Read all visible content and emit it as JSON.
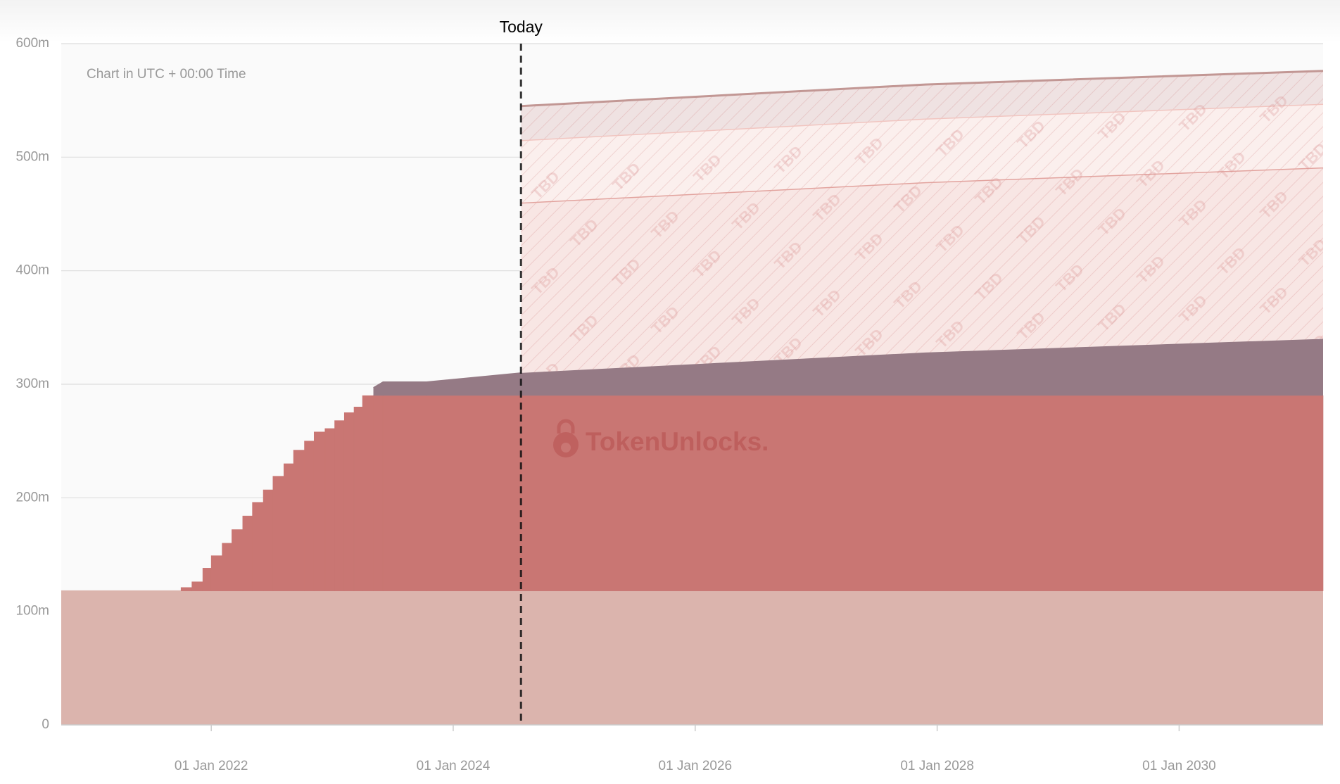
{
  "chart_data": {
    "type": "stacked_area",
    "annotation": "Chart in UTC + 00:00 Time",
    "today_label": "Today",
    "today": 2024.56,
    "watermark": "TokenUnlocks.",
    "area_label": "TBD",
    "x": [
      2020.76,
      2021.75,
      2021.84,
      2021.93,
      2022.0,
      2022.09,
      2022.17,
      2022.26,
      2022.34,
      2022.43,
      2022.51,
      2022.6,
      2022.68,
      2022.77,
      2022.85,
      2022.94,
      2023.02,
      2023.1,
      2023.18,
      2023.25,
      2023.34,
      2023.42,
      2023.78,
      2024.56,
      2027.9,
      2031.19
    ],
    "series": [
      {
        "color": "#dbb4ad",
        "values": [
          118,
          118,
          118,
          118,
          118,
          118,
          118,
          118,
          118,
          118,
          118,
          118,
          118,
          118,
          118,
          118,
          118,
          118,
          118,
          118,
          118,
          118,
          118,
          118,
          118,
          118
        ]
      },
      {
        "color": "#c97673",
        "step": true,
        "values": [
          0,
          3,
          8,
          20,
          31,
          42,
          54,
          66,
          78,
          89,
          101,
          112,
          124,
          132,
          140,
          143,
          150,
          157,
          162,
          172,
          172,
          172,
          172,
          172,
          172,
          172
        ]
      },
      {
        "color": "#957a85",
        "values": [
          null,
          null,
          null,
          null,
          null,
          null,
          null,
          null,
          null,
          null,
          null,
          null,
          null,
          null,
          null,
          null,
          null,
          null,
          null,
          null,
          7,
          12,
          12,
          20,
          38,
          50
        ]
      },
      {
        "color": "#f8e6e4",
        "line_color": "#e2a39e",
        "hatched": true,
        "values": [
          null,
          null,
          null,
          null,
          null,
          null,
          null,
          null,
          null,
          null,
          null,
          null,
          null,
          null,
          null,
          null,
          null,
          null,
          null,
          null,
          null,
          null,
          null,
          150,
          150,
          151
        ]
      },
      {
        "color": "#fbefed",
        "line_color": "#f1c5c0",
        "hatched": true,
        "values": [
          null,
          null,
          null,
          null,
          null,
          null,
          null,
          null,
          null,
          null,
          null,
          null,
          null,
          null,
          null,
          null,
          null,
          null,
          null,
          null,
          null,
          null,
          null,
          55,
          56,
          56
        ]
      },
      {
        "color": "#efe2e2",
        "line_color": "#c29794",
        "hatched": true,
        "values": [
          null,
          null,
          null,
          null,
          null,
          null,
          null,
          null,
          null,
          null,
          null,
          null,
          null,
          null,
          null,
          null,
          null,
          null,
          null,
          null,
          null,
          null,
          null,
          30,
          30,
          29
        ]
      }
    ],
    "xlim": [
      2020.76,
      2031.19
    ],
    "xticks": [
      {
        "value": 2022,
        "label": "01 Jan 2022"
      },
      {
        "value": 2024,
        "label": "01 Jan 2024"
      },
      {
        "value": 2026,
        "label": "01 Jan 2026"
      },
      {
        "value": 2028,
        "label": "01 Jan 2028"
      },
      {
        "value": 2030,
        "label": "01 Jan 2030"
      }
    ],
    "ylim": [
      0,
      600
    ],
    "yticks": [
      0,
      {
        "value": 100,
        "label": "100m"
      },
      {
        "value": 200,
        "label": "200m"
      },
      {
        "value": 300,
        "label": "300m"
      },
      {
        "value": 400,
        "label": "400m"
      },
      {
        "value": 500,
        "label": "500m"
      },
      {
        "value": 600,
        "label": "600m"
      }
    ],
    "grid": true
  }
}
